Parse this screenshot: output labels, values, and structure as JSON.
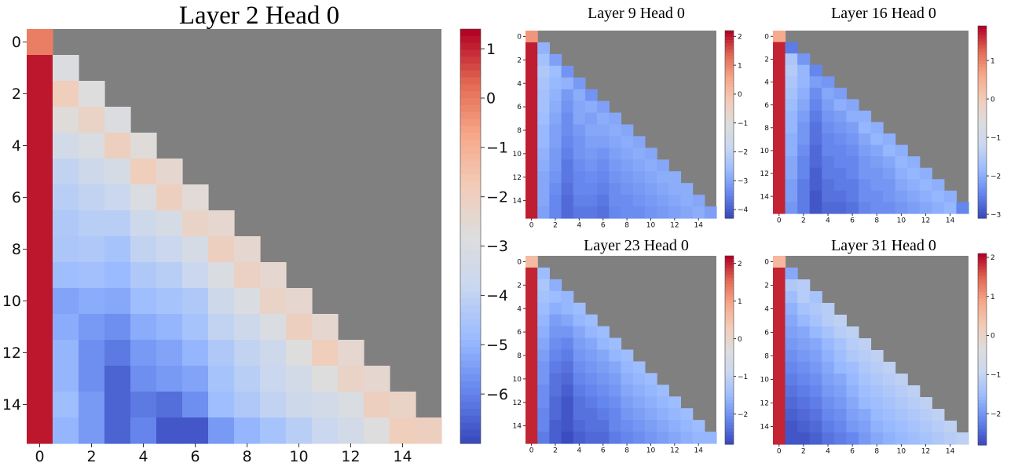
{
  "figure": {
    "description": "Causal attention heatmaps, one large panel and four small panels",
    "colormap": [
      "#3b4cc0",
      "#6788ee",
      "#9abbff",
      "#c9d7f0",
      "#dddddd",
      "#f2cbb7",
      "#f7a789",
      "#e26952",
      "#b40426"
    ],
    "masked_color": "#808080"
  },
  "chart_data": [
    {
      "type": "heatmap",
      "title": "Layer 2 Head 0",
      "n": 16,
      "xticks": [
        "0",
        "2",
        "4",
        "6",
        "8",
        "10",
        "12",
        "14"
      ],
      "yticks": [
        "0",
        "2",
        "4",
        "6",
        "8",
        "10",
        "12",
        "14"
      ],
      "cbar_ticks": [
        1,
        0,
        -1,
        -2,
        -3,
        -4,
        -5,
        -6
      ],
      "vmin": -7,
      "vmax": 1.4,
      "matrix": [
        [
          0.0
        ],
        [
          1.2,
          -2.9
        ],
        [
          1.2,
          -1.9,
          -2.8
        ],
        [
          1.2,
          -2.7,
          -2.2,
          -2.9
        ],
        [
          1.2,
          -3.4,
          -3.0,
          -2.0,
          -2.7
        ],
        [
          1.2,
          -4.0,
          -3.6,
          -3.2,
          -1.9,
          -2.4
        ],
        [
          1.2,
          -4.2,
          -4.0,
          -3.8,
          -3.0,
          -2.0,
          -2.6
        ],
        [
          1.2,
          -4.4,
          -4.2,
          -4.2,
          -3.6,
          -3.2,
          -2.2,
          -2.4
        ],
        [
          1.2,
          -4.5,
          -4.4,
          -4.6,
          -4.0,
          -3.8,
          -3.2,
          -2.0,
          -2.4
        ],
        [
          1.2,
          -4.8,
          -4.7,
          -4.9,
          -4.4,
          -4.2,
          -3.8,
          -3.0,
          -2.1,
          -2.4
        ],
        [
          1.2,
          -5.4,
          -5.2,
          -5.3,
          -4.8,
          -4.6,
          -4.4,
          -3.6,
          -3.0,
          -2.2,
          -2.4
        ],
        [
          1.2,
          -5.2,
          -5.6,
          -5.8,
          -5.2,
          -5.0,
          -4.6,
          -4.0,
          -3.6,
          -3.0,
          -2.0,
          -2.4
        ],
        [
          1.2,
          -5.0,
          -5.8,
          -6.2,
          -5.6,
          -5.4,
          -5.0,
          -4.4,
          -4.0,
          -3.6,
          -2.8,
          -1.9,
          -2.4
        ],
        [
          1.2,
          -5.0,
          -5.8,
          -6.6,
          -5.8,
          -5.6,
          -5.4,
          -4.6,
          -4.2,
          -3.8,
          -3.4,
          -2.8,
          -2.2,
          -2.4
        ],
        [
          1.2,
          -4.8,
          -5.6,
          -6.6,
          -6.2,
          -6.4,
          -5.8,
          -4.8,
          -4.4,
          -4.0,
          -3.6,
          -3.4,
          -3.0,
          -2.0,
          -2.2
        ],
        [
          1.2,
          -5.0,
          -5.6,
          -6.6,
          -6.0,
          -6.8,
          -6.8,
          -5.6,
          -5.0,
          -4.6,
          -4.2,
          -3.8,
          -3.4,
          -2.8,
          -1.9,
          -2.0
        ]
      ]
    },
    {
      "type": "heatmap",
      "title": "Layer 9 Head 0",
      "n": 16,
      "xticks": [
        "0",
        "2",
        "4",
        "6",
        "8",
        "10",
        "12",
        "14"
      ],
      "yticks": [
        "0",
        "2",
        "4",
        "6",
        "8",
        "10",
        "12",
        "14"
      ],
      "cbar_ticks": [
        2,
        1,
        0,
        -1,
        -2,
        -3,
        -4
      ],
      "vmin": -4.3,
      "vmax": 2.2,
      "matrix": [
        [
          0.8
        ],
        [
          2.0,
          -2.8
        ],
        [
          2.0,
          -2.5,
          -3.1
        ],
        [
          2.0,
          -2.3,
          -2.6,
          -3.3
        ],
        [
          2.0,
          -2.4,
          -2.7,
          -2.8,
          -3.2
        ],
        [
          2.0,
          -2.5,
          -2.8,
          -3.2,
          -2.9,
          -3.3
        ],
        [
          2.0,
          -2.5,
          -2.9,
          -3.3,
          -3.0,
          -2.9,
          -3.1
        ],
        [
          2.0,
          -2.6,
          -3.0,
          -3.4,
          -3.0,
          -3.1,
          -2.9,
          -3.0
        ],
        [
          2.0,
          -2.7,
          -3.1,
          -3.4,
          -3.2,
          -3.0,
          -3.0,
          -2.9,
          -3.0
        ],
        [
          2.0,
          -2.7,
          -3.1,
          -3.5,
          -3.3,
          -3.1,
          -3.1,
          -3.0,
          -2.9,
          -3.0
        ],
        [
          2.0,
          -2.8,
          -3.2,
          -3.6,
          -3.3,
          -3.2,
          -3.3,
          -3.1,
          -3.0,
          -2.9,
          -3.0
        ],
        [
          2.0,
          -2.9,
          -3.2,
          -3.7,
          -3.4,
          -3.3,
          -3.4,
          -3.2,
          -3.1,
          -3.0,
          -2.9,
          -3.0
        ],
        [
          2.0,
          -3.0,
          -3.3,
          -3.7,
          -3.5,
          -3.4,
          -3.5,
          -3.3,
          -3.2,
          -3.1,
          -3.0,
          -2.9,
          -2.9
        ],
        [
          2.0,
          -3.0,
          -3.4,
          -3.8,
          -3.5,
          -3.5,
          -3.6,
          -3.4,
          -3.3,
          -3.2,
          -3.1,
          -3.0,
          -2.9,
          -2.9
        ],
        [
          2.0,
          -3.0,
          -3.5,
          -3.9,
          -3.6,
          -3.6,
          -3.7,
          -3.4,
          -3.4,
          -3.3,
          -3.2,
          -3.1,
          -3.0,
          -2.9,
          -3.0
        ],
        [
          2.0,
          -3.1,
          -3.5,
          -3.9,
          -3.7,
          -3.7,
          -3.8,
          -3.5,
          -3.4,
          -3.4,
          -3.3,
          -3.2,
          -3.1,
          -3.0,
          -2.9,
          -3.1
        ]
      ]
    },
    {
      "type": "heatmap",
      "title": "Layer 16 Head 0",
      "n": 16,
      "xticks": [
        "0",
        "2",
        "4",
        "6",
        "8",
        "10",
        "12",
        "14"
      ],
      "yticks": [
        "0",
        "2",
        "4",
        "6",
        "8",
        "10",
        "12",
        "14"
      ],
      "cbar_ticks": [
        1,
        0,
        -1,
        -2,
        -3
      ],
      "vmin": -3.1,
      "vmax": 1.9,
      "matrix": [
        [
          0.6
        ],
        [
          1.7,
          -2.6
        ],
        [
          1.7,
          -1.6,
          -2.3
        ],
        [
          1.7,
          -1.5,
          -1.9,
          -2.5
        ],
        [
          1.7,
          -1.6,
          -1.9,
          -2.2,
          -2.3
        ],
        [
          1.7,
          -1.7,
          -2.0,
          -2.4,
          -2.1,
          -2.2
        ],
        [
          1.7,
          -1.8,
          -2.1,
          -2.5,
          -2.2,
          -2.0,
          -2.1
        ],
        [
          1.7,
          -1.9,
          -2.2,
          -2.6,
          -2.3,
          -2.2,
          -2.0,
          -2.0
        ],
        [
          1.7,
          -1.9,
          -2.3,
          -2.7,
          -2.4,
          -2.3,
          -2.2,
          -1.9,
          -2.0
        ],
        [
          1.7,
          -2.0,
          -2.3,
          -2.7,
          -2.5,
          -2.4,
          -2.3,
          -2.1,
          -1.9,
          -2.0
        ],
        [
          1.7,
          -2.0,
          -2.4,
          -2.8,
          -2.5,
          -2.5,
          -2.4,
          -2.2,
          -2.1,
          -1.9,
          -2.0
        ],
        [
          1.7,
          -2.1,
          -2.5,
          -2.8,
          -2.6,
          -2.5,
          -2.5,
          -2.3,
          -2.2,
          -2.1,
          -1.9,
          -2.0
        ],
        [
          1.7,
          -2.1,
          -2.5,
          -2.9,
          -2.6,
          -2.6,
          -2.5,
          -2.3,
          -2.3,
          -2.2,
          -2.0,
          -1.9,
          -2.0
        ],
        [
          1.7,
          -2.2,
          -2.6,
          -2.9,
          -2.7,
          -2.6,
          -2.6,
          -2.4,
          -2.3,
          -2.3,
          -2.1,
          -2.0,
          -1.9,
          -2.0
        ],
        [
          1.7,
          -2.2,
          -2.6,
          -3.0,
          -2.7,
          -2.7,
          -2.6,
          -2.4,
          -2.4,
          -2.3,
          -2.2,
          -2.1,
          -2.0,
          -1.9,
          -2.0
        ],
        [
          1.7,
          -2.3,
          -2.6,
          -3.0,
          -2.8,
          -2.8,
          -2.7,
          -2.5,
          -2.4,
          -2.4,
          -2.3,
          -2.2,
          -2.1,
          -2.0,
          -1.9,
          -2.5
        ]
      ]
    },
    {
      "type": "heatmap",
      "title": "Layer 23 Head 0",
      "n": 16,
      "xticks": [
        "0",
        "2",
        "4",
        "6",
        "8",
        "10",
        "12",
        "14"
      ],
      "yticks": [
        "0",
        "2",
        "4",
        "6",
        "8",
        "10",
        "12",
        "14"
      ],
      "cbar_ticks": [
        2,
        1,
        0,
        -1,
        -2
      ],
      "vmin": -2.8,
      "vmax": 2.2,
      "matrix": [
        [
          0.6
        ],
        [
          2.0,
          -1.5
        ],
        [
          2.0,
          -1.3,
          -1.7
        ],
        [
          2.0,
          -1.4,
          -1.5,
          -1.6
        ],
        [
          2.0,
          -1.5,
          -1.7,
          -1.6,
          -1.5
        ],
        [
          2.0,
          -1.6,
          -1.9,
          -1.8,
          -1.6,
          -1.5
        ],
        [
          2.0,
          -1.7,
          -2.0,
          -2.0,
          -1.8,
          -1.6,
          -1.5
        ],
        [
          2.0,
          -1.8,
          -2.1,
          -2.2,
          -1.9,
          -1.8,
          -1.6,
          -1.5
        ],
        [
          2.0,
          -1.9,
          -2.2,
          -2.3,
          -2.0,
          -1.9,
          -1.8,
          -1.6,
          -1.5
        ],
        [
          2.0,
          -2.0,
          -2.3,
          -2.4,
          -2.1,
          -2.0,
          -1.9,
          -1.8,
          -1.6,
          -1.5
        ],
        [
          2.0,
          -2.0,
          -2.4,
          -2.5,
          -2.2,
          -2.1,
          -2.0,
          -1.9,
          -1.7,
          -1.6,
          -1.5
        ],
        [
          2.0,
          -2.1,
          -2.4,
          -2.6,
          -2.3,
          -2.2,
          -2.1,
          -2.0,
          -1.8,
          -1.7,
          -1.6,
          -1.5
        ],
        [
          2.0,
          -2.1,
          -2.5,
          -2.7,
          -2.4,
          -2.3,
          -2.2,
          -2.1,
          -1.9,
          -1.8,
          -1.7,
          -1.6,
          -1.5
        ],
        [
          2.0,
          -2.2,
          -2.5,
          -2.7,
          -2.4,
          -2.4,
          -2.3,
          -2.2,
          -2.0,
          -1.9,
          -1.8,
          -1.7,
          -1.6,
          -1.5
        ],
        [
          2.0,
          -2.2,
          -2.6,
          -2.7,
          -2.5,
          -2.4,
          -2.4,
          -2.2,
          -2.1,
          -2.0,
          -1.9,
          -1.8,
          -1.7,
          -1.6,
          -1.5
        ],
        [
          2.0,
          -2.3,
          -2.6,
          -2.8,
          -2.6,
          -2.5,
          -2.5,
          -2.3,
          -2.2,
          -2.1,
          -2.0,
          -1.9,
          -1.8,
          -1.7,
          -1.6,
          -1.6
        ]
      ]
    },
    {
      "type": "heatmap",
      "title": "Layer 31 Head 0",
      "n": 16,
      "xticks": [
        "0",
        "2",
        "4",
        "6",
        "8",
        "10",
        "12",
        "14"
      ],
      "yticks": [
        "0",
        "2",
        "4",
        "6",
        "8",
        "10",
        "12",
        "14"
      ],
      "cbar_ticks": [
        2,
        1,
        0,
        -1,
        -2
      ],
      "vmin": -2.8,
      "vmax": 2.1,
      "matrix": [
        [
          0.6
        ],
        [
          1.9,
          -1.8
        ],
        [
          1.9,
          -1.3,
          -1.2
        ],
        [
          1.9,
          -1.5,
          -1.2,
          -1.4
        ],
        [
          1.9,
          -1.7,
          -1.4,
          -1.3,
          -1.2
        ],
        [
          1.9,
          -1.8,
          -1.6,
          -1.4,
          -1.2,
          -1.1
        ],
        [
          1.9,
          -1.9,
          -1.8,
          -1.6,
          -1.4,
          -1.2,
          -1.1
        ],
        [
          1.9,
          -2.0,
          -1.9,
          -1.8,
          -1.6,
          -1.4,
          -1.2,
          -1.1
        ],
        [
          1.9,
          -2.1,
          -2.0,
          -1.9,
          -1.7,
          -1.5,
          -1.3,
          -1.2,
          -1.1
        ],
        [
          1.9,
          -2.2,
          -2.1,
          -2.0,
          -1.8,
          -1.6,
          -1.5,
          -1.3,
          -1.2,
          -1.1
        ],
        [
          1.9,
          -2.3,
          -2.2,
          -2.1,
          -1.9,
          -1.8,
          -1.6,
          -1.4,
          -1.3,
          -1.2,
          -1.1
        ],
        [
          1.9,
          -2.4,
          -2.3,
          -2.2,
          -2.0,
          -1.9,
          -1.7,
          -1.5,
          -1.4,
          -1.3,
          -1.2,
          -1.1
        ],
        [
          1.9,
          -2.5,
          -2.4,
          -2.3,
          -2.1,
          -2.0,
          -1.8,
          -1.6,
          -1.5,
          -1.4,
          -1.3,
          -1.2,
          -1.1
        ],
        [
          1.9,
          -2.6,
          -2.5,
          -2.4,
          -2.2,
          -2.1,
          -1.9,
          -1.8,
          -1.6,
          -1.5,
          -1.4,
          -1.3,
          -1.2,
          -1.1
        ],
        [
          1.9,
          -2.7,
          -2.6,
          -2.5,
          -2.3,
          -2.2,
          -2.0,
          -1.9,
          -1.7,
          -1.6,
          -1.5,
          -1.4,
          -1.3,
          -1.2,
          -1.1
        ],
        [
          1.9,
          -2.7,
          -2.7,
          -2.6,
          -2.4,
          -2.3,
          -2.2,
          -2.0,
          -1.8,
          -1.7,
          -1.6,
          -1.5,
          -1.4,
          -1.3,
          -1.2,
          -1.1
        ]
      ]
    }
  ]
}
